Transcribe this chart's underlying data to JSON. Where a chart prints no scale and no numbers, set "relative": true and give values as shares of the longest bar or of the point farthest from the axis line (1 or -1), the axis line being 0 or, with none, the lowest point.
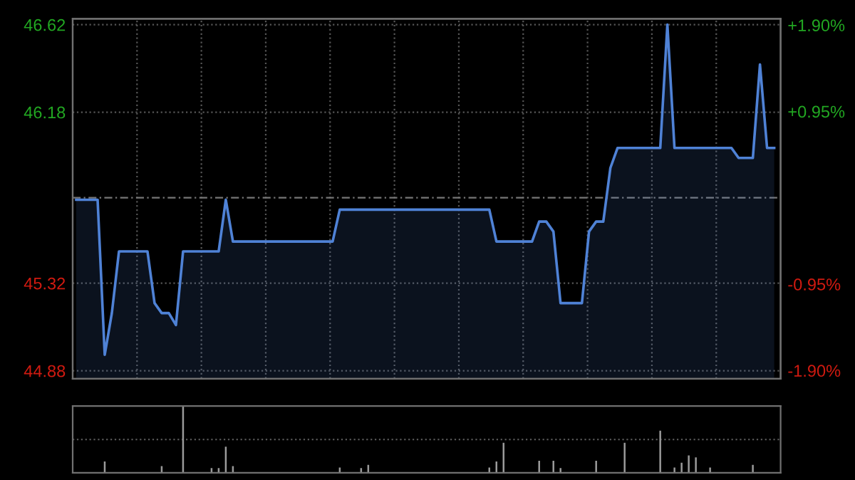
{
  "chart_data": [
    {
      "type": "area",
      "categories": [
        null,
        null,
        null,
        null,
        null,
        null,
        null,
        null,
        null,
        null,
        null,
        null,
        null,
        null,
        null,
        null,
        null,
        null,
        null,
        null,
        null,
        null,
        null,
        null,
        null,
        null,
        null,
        null,
        null,
        null,
        null,
        null,
        null,
        null,
        null,
        null,
        null,
        null,
        null,
        null,
        null,
        null,
        null,
        null,
        null,
        null,
        null,
        null,
        null,
        null,
        null,
        null,
        null,
        null,
        null,
        null,
        null,
        null,
        null,
        null,
        null,
        null,
        null,
        null,
        null,
        null,
        null,
        null,
        null,
        null,
        null,
        null,
        null,
        null,
        null,
        null,
        null,
        null,
        null,
        null,
        null,
        null,
        null,
        null,
        null,
        null,
        null,
        null,
        null,
        null,
        null,
        null,
        null,
        null,
        null,
        null,
        null,
        null,
        null
      ],
      "series": [
        {
          "color": "#4f82d6",
          "values": [
            45.74,
            45.74,
            45.74,
            45.74,
            44.96,
            45.17,
            45.48,
            45.48,
            45.48,
            45.48,
            45.48,
            45.22,
            45.17,
            45.17,
            45.11,
            45.48,
            45.48,
            45.48,
            45.48,
            45.48,
            45.48,
            45.74,
            45.53,
            45.53,
            45.53,
            45.53,
            45.53,
            45.53,
            45.53,
            45.53,
            45.53,
            45.53,
            45.53,
            45.53,
            45.53,
            45.53,
            45.53,
            45.69,
            45.69,
            45.69,
            45.69,
            45.69,
            45.69,
            45.69,
            45.69,
            45.69,
            45.69,
            45.69,
            45.69,
            45.69,
            45.69,
            45.69,
            45.69,
            45.69,
            45.69,
            45.69,
            45.69,
            45.69,
            45.69,
            45.53,
            45.53,
            45.53,
            45.53,
            45.53,
            45.53,
            45.63,
            45.63,
            45.58,
            45.22,
            45.22,
            45.22,
            45.22,
            45.58,
            45.63,
            45.63,
            45.9,
            46.0,
            46.0,
            46.0,
            46.0,
            46.0,
            46.0,
            46.0,
            46.62,
            46.0,
            46.0,
            46.0,
            46.0,
            46.0,
            46.0,
            46.0,
            46.0,
            46.0,
            45.95,
            45.95,
            45.95,
            46.42,
            46.0,
            46.0
          ]
        }
      ],
      "ylim": [
        44.84,
        46.65
      ],
      "yticks": [
        44.88,
        45.32,
        46.18,
        46.62
      ],
      "y2lim": [
        -1.99,
        1.97
      ],
      "y2ticks": [
        {
          "value": -1.9,
          "label": "-1.90%"
        },
        {
          "value": -0.95,
          "label": "-0.95%"
        },
        {
          "value": 0.95,
          "label": "+0.95%"
        },
        {
          "value": 1.9,
          "label": "+1.90%"
        }
      ],
      "ref_lines": [
        {
          "axis": "y",
          "value": 45.75,
          "line_style": "dashed",
          "color": "#777777"
        }
      ],
      "grid": true
    },
    {
      "type": "bar",
      "relative": true,
      "color": "#9a9a9a",
      "ref_lines": [
        {
          "axis": "y",
          "value": 0.5,
          "line_style": "dotted",
          "color": "#555555"
        }
      ],
      "categories": [
        null,
        null,
        null,
        null,
        null,
        null,
        null,
        null,
        null,
        null,
        null,
        null,
        null,
        null,
        null,
        null,
        null,
        null,
        null,
        null,
        null,
        null,
        null,
        null,
        null,
        null,
        null,
        null,
        null,
        null,
        null,
        null,
        null,
        null,
        null,
        null,
        null,
        null,
        null,
        null,
        null,
        null,
        null,
        null,
        null,
        null,
        null,
        null,
        null,
        null,
        null,
        null,
        null,
        null,
        null,
        null,
        null,
        null,
        null,
        null,
        null,
        null,
        null,
        null,
        null,
        null,
        null,
        null,
        null,
        null,
        null,
        null,
        null,
        null,
        null,
        null,
        null,
        null,
        null,
        null,
        null,
        null,
        null,
        null,
        null,
        null,
        null,
        null,
        null,
        null,
        null,
        null,
        null,
        null,
        null,
        null,
        null,
        null,
        null
      ],
      "values": [
        0,
        0,
        0,
        0,
        0.17,
        0,
        0,
        0,
        0,
        0,
        0,
        0,
        0.1,
        0,
        0,
        1.0,
        0,
        0,
        0,
        0.07,
        0.07,
        0.39,
        0.1,
        0,
        0,
        0,
        0,
        0,
        0,
        0,
        0,
        0,
        0,
        0,
        0,
        0,
        0,
        0.08,
        0,
        0,
        0.07,
        0.12,
        0,
        0,
        0,
        0,
        0,
        0,
        0,
        0,
        0,
        0,
        0,
        0,
        0,
        0,
        0,
        0,
        0.08,
        0.17,
        0.45,
        0,
        0,
        0,
        0,
        0.18,
        0,
        0.18,
        0.07,
        0,
        0,
        0,
        0,
        0.18,
        0,
        0,
        0,
        0.45,
        0,
        0,
        0,
        0,
        0.63,
        0,
        0.08,
        0.15,
        0.26,
        0.23,
        0,
        0.08,
        0,
        0,
        0,
        0,
        0,
        0.12,
        0,
        0,
        0
      ]
    }
  ]
}
